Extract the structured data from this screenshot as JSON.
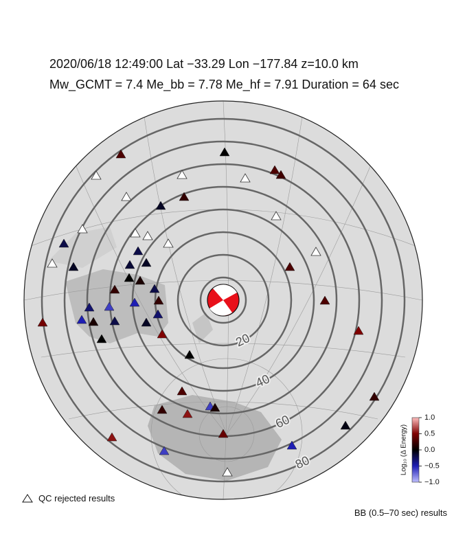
{
  "chart_data": {
    "type": "map",
    "title": "2020/06/18  12:49:00   Lat −33.29   Lon −177.84   z=10.0 km",
    "subtitle": "Mw_GCMT = 7.4   Me_bb = 7.78   Me_hf = 7.91   Duration = 64 sec",
    "distance_rings": [
      20,
      40,
      60,
      80
    ],
    "stations": {
      "values": [
        0.3,
        0,
        null,
        null,
        null,
        0.3,
        0.25,
        null,
        0.2,
        -0.1,
        null,
        null,
        null,
        null,
        -0.2,
        -0.2,
        null,
        null,
        null,
        -0.1,
        -0.15,
        -0.1,
        0.3,
        0,
        0.1,
        0.2,
        -0.2,
        0.2,
        0.3,
        -0.5,
        -0.3,
        -0.6,
        0.45,
        -0.5,
        0.1,
        -0.2,
        -0.3,
        -0.1,
        0.5,
        0,
        0.5,
        0,
        0.3,
        0.2,
        0.2,
        -0.6,
        0.1,
        0.55,
        -0.05,
        0.4,
        0.55,
        -0.6,
        -0.5,
        null
      ]
    },
    "colorbar": {
      "label": "Log₁₀ (Δ Energy)",
      "lim": [
        -1,
        1
      ],
      "ticks": [
        {
          "value": 1,
          "label": "1.0"
        },
        {
          "value": 0.5,
          "label": "0.5"
        },
        {
          "value": 0,
          "label": "0.0"
        },
        {
          "value": -0.5,
          "label": "−0.5"
        },
        {
          "value": -1,
          "label": "−1.0"
        }
      ]
    },
    "legend_qc": "QC rejected results",
    "legend_bb": "BB (0.5–70 sec) results"
  }
}
